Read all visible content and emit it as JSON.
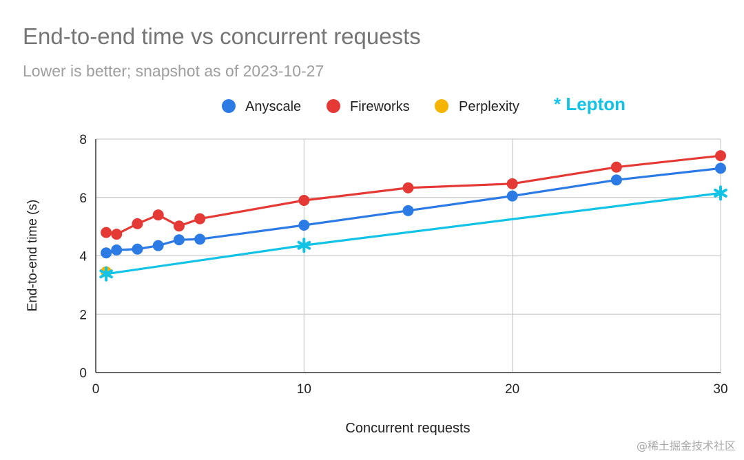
{
  "chart_data": {
    "type": "line",
    "title": "End-to-end time vs concurrent requests",
    "subtitle": "Lower is better; snapshot as of 2023-10-27",
    "xlabel": "Concurrent requests",
    "ylabel": "End-to-end time (s)",
    "xlim": [
      0,
      30
    ],
    "ylim": [
      0,
      8
    ],
    "x_ticks": [
      0,
      10,
      20,
      30
    ],
    "y_ticks": [
      0,
      2,
      4,
      6,
      8
    ],
    "grid": true,
    "legend_position": "top",
    "series": [
      {
        "name": "Anyscale",
        "color": "#2c7be5",
        "marker": "circle",
        "x": [
          0.5,
          1,
          2,
          3,
          4,
          5,
          10,
          15,
          20,
          25,
          30
        ],
        "y": [
          4.1,
          4.2,
          4.23,
          4.35,
          4.55,
          4.57,
          5.05,
          5.55,
          6.05,
          6.6,
          7.0
        ]
      },
      {
        "name": "Fireworks",
        "color": "#e53935",
        "marker": "circle",
        "x": [
          0.5,
          1,
          2,
          3,
          4,
          5,
          10,
          15,
          20,
          25,
          30
        ],
        "y": [
          4.8,
          4.74,
          5.1,
          5.4,
          5.02,
          5.27,
          5.9,
          6.33,
          6.47,
          7.04,
          7.43
        ]
      },
      {
        "name": "Perplexity",
        "color": "#f5b400",
        "marker": "circle",
        "x": [
          0.5
        ],
        "y": [
          3.45
        ]
      },
      {
        "name": "Lepton",
        "color": "#12c3e6",
        "marker": "star",
        "legend_label": "* Lepton",
        "x": [
          0.5,
          10,
          30
        ],
        "y": [
          3.38,
          4.36,
          6.15
        ]
      }
    ]
  },
  "watermark": "@稀土掘金技术社区"
}
